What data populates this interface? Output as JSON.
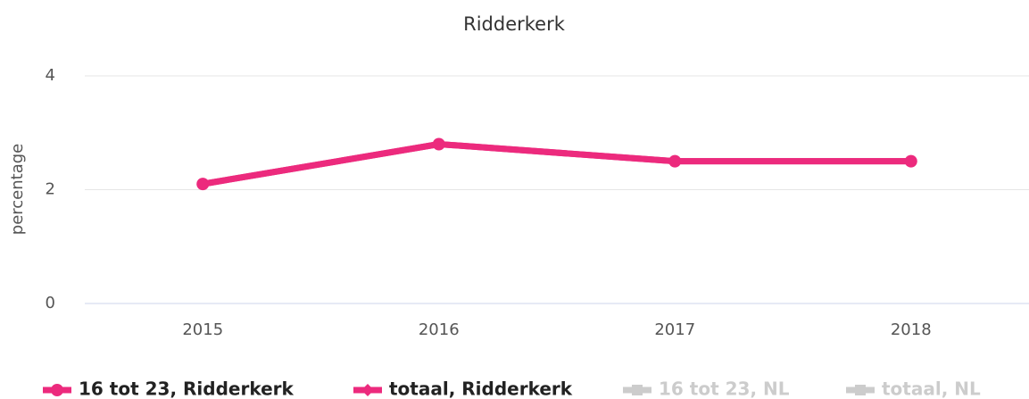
{
  "chart_data": {
    "type": "line",
    "title": "Ridderkerk",
    "y_label": "percentage",
    "categories": [
      "2015",
      "2016",
      "2017",
      "2018"
    ],
    "series": [
      {
        "name": "16 tot 23, Ridderkerk",
        "color": "#ec2a7d",
        "marker": "circle",
        "visible": true,
        "values": [
          2.1,
          2.8,
          2.5,
          2.5
        ]
      },
      {
        "name": "totaal, Ridderkerk",
        "color": "#ec2a7d",
        "marker": "diamond",
        "visible": true,
        "values": [
          2.1,
          2.8,
          2.5,
          2.5
        ]
      },
      {
        "name": "16 tot 23, NL",
        "color": "#cccccc",
        "marker": "square",
        "visible": false,
        "values": [
          null,
          null,
          null,
          null
        ]
      },
      {
        "name": "totaal, NL",
        "color": "#cccccc",
        "marker": "square",
        "visible": false,
        "values": [
          null,
          null,
          null,
          null
        ]
      }
    ],
    "ylim": [
      0,
      4
    ],
    "yticks": [
      0,
      2,
      4
    ],
    "grid": true
  }
}
